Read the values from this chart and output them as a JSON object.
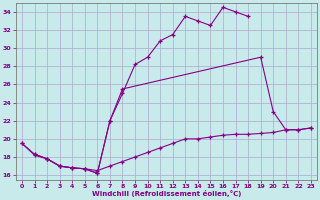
{
  "bg_color": "#c8eaea",
  "grid_color": "#aaaacc",
  "line_color": "#880088",
  "xlabel": "Windchill (Refroidissement éolien,°C)",
  "xlim_min": -0.5,
  "xlim_max": 23.5,
  "ylim_min": 15.5,
  "ylim_max": 35.0,
  "yticks": [
    16,
    18,
    20,
    22,
    24,
    26,
    28,
    30,
    32,
    34
  ],
  "xticks": [
    0,
    1,
    2,
    3,
    4,
    5,
    6,
    7,
    8,
    9,
    10,
    11,
    12,
    13,
    14,
    15,
    16,
    17,
    18,
    19,
    20,
    21,
    22,
    23
  ],
  "line1_x": [
    0,
    1,
    2,
    3,
    4,
    5,
    6,
    7,
    8,
    9,
    10,
    11,
    12,
    13,
    14,
    15,
    16,
    17,
    18
  ],
  "line1_y": [
    19.5,
    18.3,
    17.8,
    17.0,
    16.8,
    16.7,
    16.2,
    22.0,
    25.0,
    28.2,
    29.0,
    30.8,
    31.5,
    33.5,
    33.0,
    32.5,
    34.5,
    34.0,
    33.5
  ],
  "line2_x": [
    1,
    2,
    3,
    4,
    5,
    6,
    7,
    8,
    19,
    20,
    21,
    22,
    23
  ],
  "line2_y": [
    18.3,
    17.8,
    17.0,
    16.8,
    16.7,
    16.2,
    22.0,
    25.5,
    29.0,
    23.0,
    21.0,
    21.0,
    21.2
  ],
  "line3_x": [
    0,
    1,
    2,
    3,
    4,
    5,
    6,
    7,
    8,
    9,
    10,
    11,
    12,
    13,
    14,
    15,
    16,
    17,
    18,
    19,
    20,
    21,
    22,
    23
  ],
  "line3_y": [
    19.5,
    18.2,
    17.8,
    17.0,
    16.8,
    16.7,
    16.5,
    17.0,
    17.5,
    18.0,
    18.5,
    19.0,
    19.5,
    20.0,
    20.0,
    20.2,
    20.4,
    20.5,
    20.5,
    20.6,
    20.7,
    21.0,
    21.0,
    21.2
  ]
}
